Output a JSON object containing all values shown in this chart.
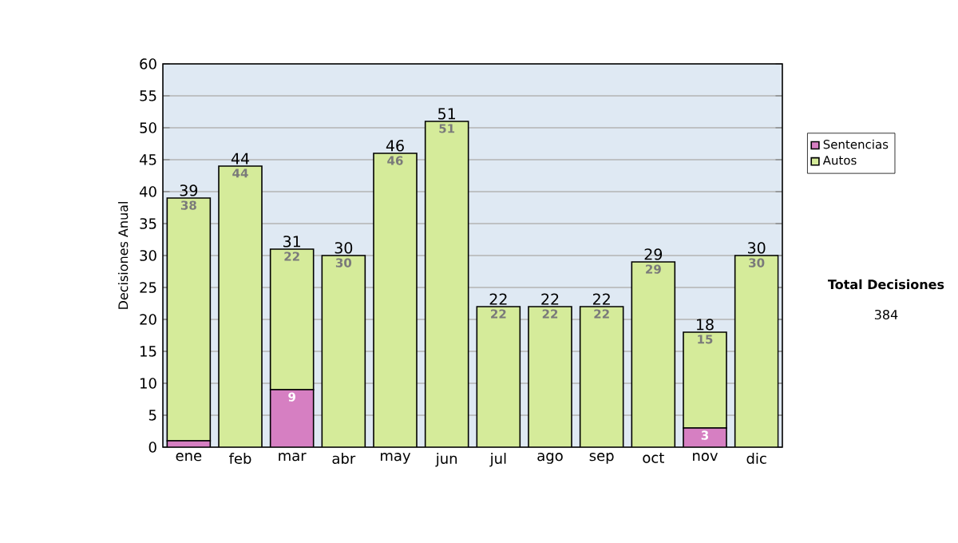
{
  "chart_data": {
    "type": "bar",
    "stacked": true,
    "ylabel": "Decisiones Anual",
    "categories": [
      "ene",
      "feb",
      "mar",
      "abr",
      "may",
      "jun",
      "jul",
      "ago",
      "sep",
      "oct",
      "nov",
      "dic"
    ],
    "series": [
      {
        "name": "Sentencias",
        "color": "#d67fc2",
        "values": [
          1,
          0,
          9,
          0,
          0,
          0,
          0,
          0,
          0,
          0,
          3,
          0
        ],
        "value_labels": [
          null,
          null,
          "9",
          null,
          null,
          null,
          null,
          null,
          null,
          null,
          "3",
          null
        ]
      },
      {
        "name": "Autos",
        "color": "#d5eb9a",
        "values": [
          38,
          44,
          22,
          30,
          46,
          51,
          22,
          22,
          22,
          29,
          15,
          30
        ],
        "value_labels": [
          "38",
          "44",
          "22",
          "30",
          "46",
          "51",
          "22",
          "22",
          "22",
          "29",
          "15",
          "30"
        ]
      }
    ],
    "totals": [
      "39",
      "44",
      "31",
      "30",
      "46",
      "51",
      "22",
      "22",
      "22",
      "29",
      "18",
      "30"
    ],
    "ylim": [
      0,
      60
    ],
    "yticks": [
      0,
      5,
      10,
      15,
      20,
      25,
      30,
      35,
      40,
      45,
      50,
      55,
      60
    ],
    "grid": "y",
    "legend": "right",
    "annotations": [
      "Total Decisiones",
      "384"
    ]
  }
}
